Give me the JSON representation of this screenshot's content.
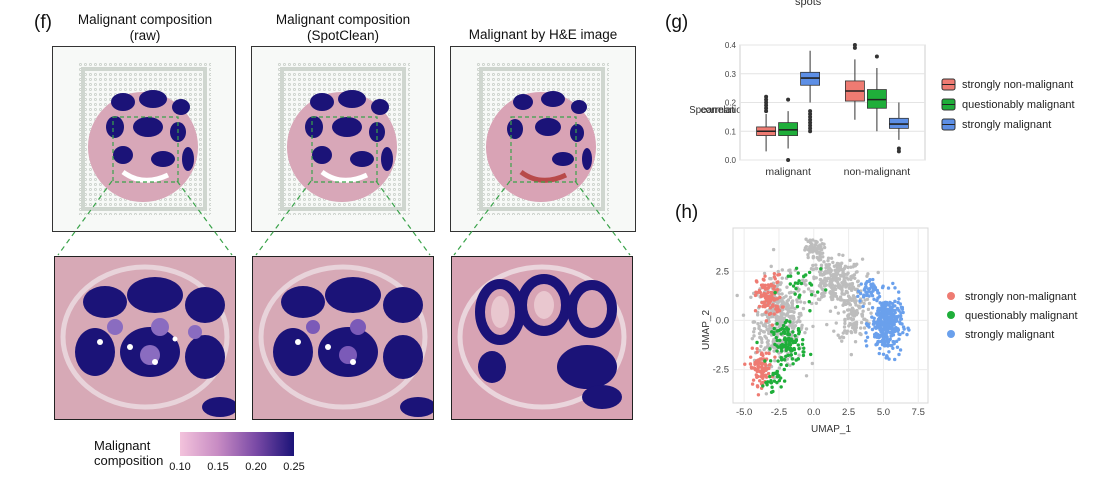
{
  "panel_f": {
    "label": "(f)",
    "titles": [
      {
        "line1": "Malignant composition",
        "line2": "(raw)"
      },
      {
        "line1": "Malignant composition",
        "line2": "(SpotClean)"
      },
      {
        "line1": "Malignant by H&E image",
        "line2": ""
      }
    ],
    "colorbar": {
      "title_line1": "Malignant",
      "title_line2": "composition",
      "ticks": [
        "0.10",
        "0.15",
        "0.20",
        "0.25"
      ],
      "color_low": "#f3c3dc",
      "color_high": "#1b1378"
    }
  },
  "panel_g": {
    "label": "(g)",
    "cut_text": "spots"
  },
  "panel_h": {
    "label": "(h)"
  },
  "chart_data": [
    {
      "type": "box",
      "title": "",
      "xlabel": "",
      "ylabel": "Spearman correlation",
      "ylabel_line1": "Spearman",
      "ylabel_line2": "correlation",
      "ylim": [
        0.0,
        0.4
      ],
      "yticks": [
        "0.0",
        "0.1",
        "0.2",
        "0.3",
        "0.4"
      ],
      "categories": [
        "malignant",
        "non-malignant"
      ],
      "legend": [
        "strongly non-malignant",
        "questionably malignant",
        "strongly malignant"
      ],
      "colors": [
        "#ee7b72",
        "#1fae3a",
        "#5d8fe6"
      ],
      "series": [
        {
          "name": "strongly non-malignant",
          "boxes": [
            {
              "q1": 0.085,
              "median": 0.1,
              "q3": 0.115,
              "min": 0.03,
              "max": 0.16,
              "outliers": [
                0.17,
                0.18,
                0.19,
                0.2,
                0.21,
                0.22
              ]
            },
            {
              "q1": 0.205,
              "median": 0.24,
              "q3": 0.275,
              "min": 0.14,
              "max": 0.35,
              "outliers": [
                0.39,
                0.4
              ]
            }
          ]
        },
        {
          "name": "questionably malignant",
          "boxes": [
            {
              "q1": 0.085,
              "median": 0.105,
              "q3": 0.13,
              "min": 0.04,
              "max": 0.17,
              "outliers": [
                0.0,
                0.21
              ]
            },
            {
              "q1": 0.18,
              "median": 0.21,
              "q3": 0.245,
              "min": 0.1,
              "max": 0.32,
              "outliers": [
                0.36
              ]
            }
          ]
        },
        {
          "name": "strongly malignant",
          "boxes": [
            {
              "q1": 0.26,
              "median": 0.285,
              "q3": 0.305,
              "min": 0.2,
              "max": 0.38,
              "outliers": [
                0.1,
                0.11,
                0.12,
                0.13,
                0.14,
                0.15,
                0.16,
                0.17
              ]
            },
            {
              "q1": 0.11,
              "median": 0.125,
              "q3": 0.145,
              "min": 0.07,
              "max": 0.2,
              "outliers": [
                0.03,
                0.04
              ]
            }
          ]
        }
      ]
    },
    {
      "type": "scatter",
      "title": "",
      "xlabel": "UMAP_1",
      "ylabel": "UMAP_2",
      "xlim": [
        -5.8,
        8.2
      ],
      "ylim": [
        -4.2,
        4.7
      ],
      "xticks": [
        "-5.0",
        "-2.5",
        "0.0",
        "2.5",
        "5.0",
        "7.5"
      ],
      "yticks": [
        "-2.5",
        "0.0",
        "2.5"
      ],
      "legend": [
        "strongly non-malignant",
        "questionably malignant",
        "strongly malignant"
      ],
      "colors": {
        "strongly non-malignant": "#ee7b72",
        "questionably malignant": "#1fae3a",
        "strongly malignant": "#6aa0ec",
        "other": "#bdbdbd"
      },
      "series": [
        {
          "name": "other",
          "clusters": [
            {
              "cx": -2.5,
              "cy": 0.0,
              "sx": 1.6,
              "sy": 2.0,
              "n": 380
            },
            {
              "cx": 1.5,
              "cy": 2.0,
              "sx": 1.8,
              "sy": 1.0,
              "n": 260
            },
            {
              "cx": 2.8,
              "cy": 0.3,
              "sx": 1.0,
              "sy": 1.3,
              "n": 120
            },
            {
              "cx": 0.0,
              "cy": 3.6,
              "sx": 0.6,
              "sy": 0.5,
              "n": 60
            }
          ]
        },
        {
          "name": "strongly non-malignant",
          "clusters": [
            {
              "cx": -3.2,
              "cy": 1.2,
              "sx": 0.8,
              "sy": 1.0,
              "n": 110
            },
            {
              "cx": -3.8,
              "cy": -2.4,
              "sx": 0.7,
              "sy": 0.8,
              "n": 90
            }
          ]
        },
        {
          "name": "questionably malignant",
          "clusters": [
            {
              "cx": -1.8,
              "cy": -1.2,
              "sx": 1.1,
              "sy": 0.9,
              "n": 110
            },
            {
              "cx": -0.8,
              "cy": 1.6,
              "sx": 1.5,
              "sy": 1.4,
              "n": 30
            },
            {
              "cx": -3.0,
              "cy": -3.0,
              "sx": 0.6,
              "sy": 0.5,
              "n": 25
            }
          ]
        },
        {
          "name": "strongly malignant",
          "clusters": [
            {
              "cx": 5.2,
              "cy": -0.2,
              "sx": 1.0,
              "sy": 1.3,
              "n": 330
            },
            {
              "cx": 3.8,
              "cy": 1.5,
              "sx": 0.6,
              "sy": 0.5,
              "n": 40
            }
          ]
        }
      ]
    }
  ]
}
